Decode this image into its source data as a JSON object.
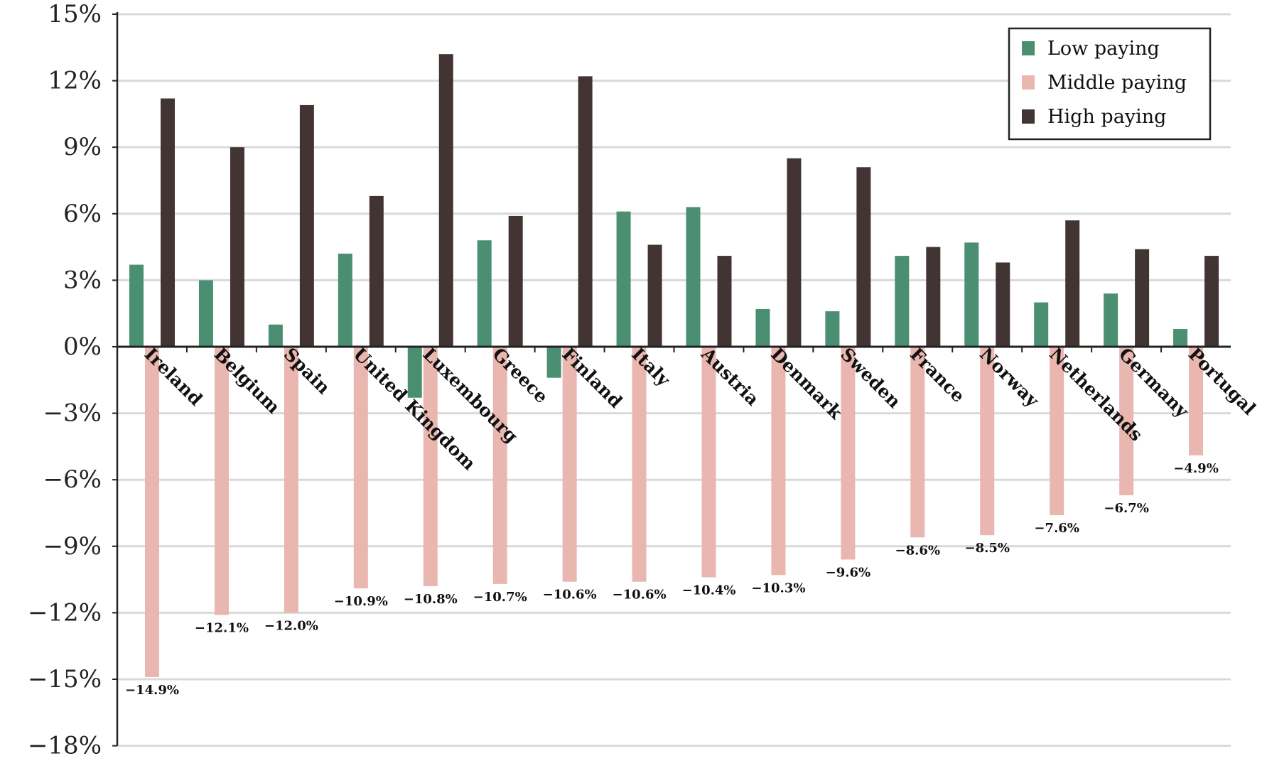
{
  "chart_data": {
    "type": "bar",
    "title": "",
    "xlabel": "",
    "ylabel": "",
    "ylim": [
      -18,
      15
    ],
    "yticks": [
      "15%",
      "12%",
      "9%",
      "6%",
      "3%",
      "0%",
      "−3%",
      "−6%",
      "−9%",
      "−12%",
      "−15%",
      "−18%"
    ],
    "ytick_values": [
      15,
      12,
      9,
      6,
      3,
      0,
      -3,
      -6,
      -9,
      -12,
      -15,
      -18
    ],
    "grid": true,
    "legend_position": "top-right",
    "categories": [
      "Ireland",
      "Belgium",
      "Spain",
      "United Kingdom",
      "Luxembourg",
      "Greece",
      "Finland",
      "Italy",
      "Austria",
      "Denmark",
      "Sweden",
      "France",
      "Norway",
      "Netherlands",
      "Germany",
      "Portugal"
    ],
    "series": [
      {
        "name": "Low paying",
        "color": "#4a8f72",
        "values": [
          3.7,
          3.0,
          1.0,
          4.2,
          -2.3,
          4.8,
          -1.4,
          6.1,
          6.3,
          1.7,
          1.6,
          4.1,
          4.7,
          2.0,
          2.4,
          0.8
        ]
      },
      {
        "name": "Middle paying",
        "color": "#e9b7b0",
        "values": [
          -14.9,
          -12.1,
          -12.0,
          -10.9,
          -10.8,
          -10.7,
          -10.6,
          -10.6,
          -10.4,
          -10.3,
          -9.6,
          -8.6,
          -8.5,
          -7.6,
          -6.7,
          -4.9
        ]
      },
      {
        "name": "High paying",
        "color": "#433434",
        "values": [
          11.2,
          9.0,
          10.9,
          6.8,
          13.2,
          5.9,
          12.2,
          4.6,
          4.1,
          8.5,
          8.1,
          4.5,
          3.8,
          5.7,
          4.4,
          4.1
        ]
      }
    ],
    "data_labels": [
      "−14.9%",
      "−12.1%",
      "−12.0%",
      "−10.9%",
      "−10.8%",
      "−10.7%",
      "−10.6%",
      "−10.6%",
      "−10.4%",
      "−10.3%",
      "−9.6%",
      "−8.6%",
      "−8.5%",
      "−7.6%",
      "−6.7%",
      "−4.9%"
    ]
  }
}
